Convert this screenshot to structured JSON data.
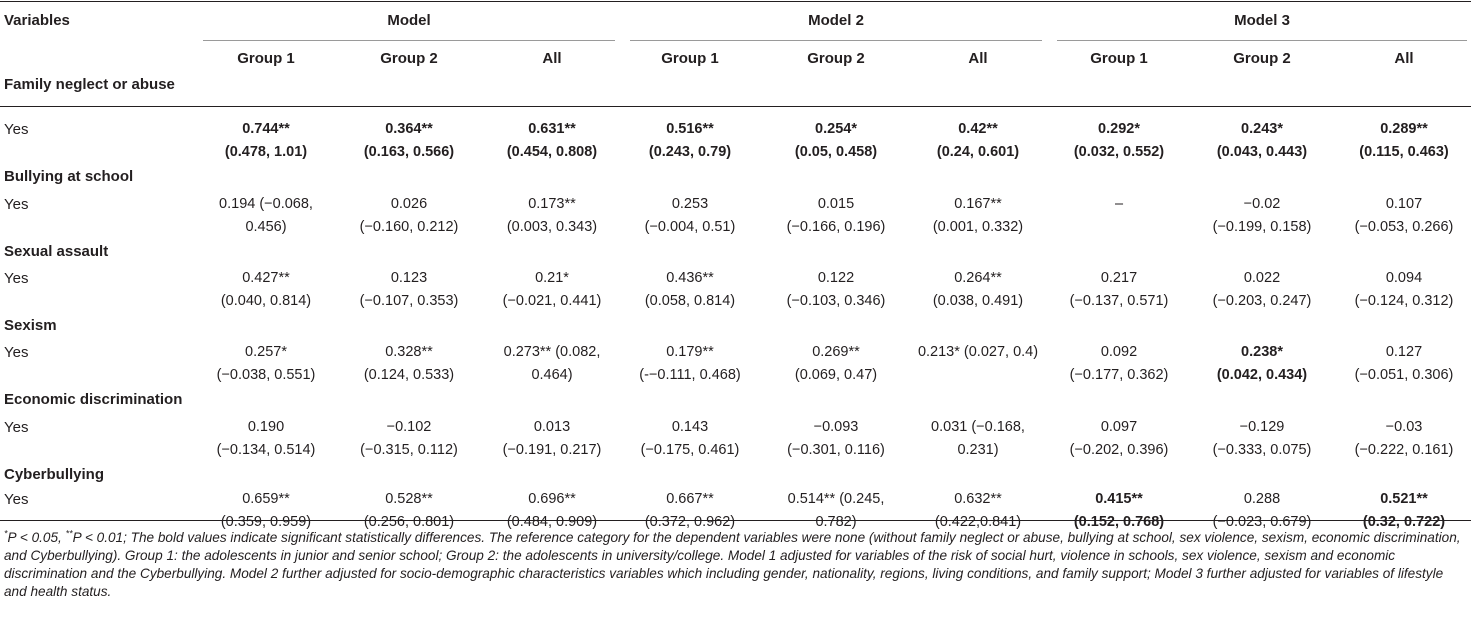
{
  "header": {
    "variables": "Variables",
    "models": [
      "Model",
      "Model 2",
      "Model 3"
    ],
    "groups": [
      "Group 1",
      "Group 2",
      "All",
      "Group 1",
      "Group 2",
      "All",
      "Group 1",
      "Group 2",
      "All"
    ]
  },
  "sections": [
    {
      "title": "Family neglect or abuse",
      "row_label": "Yes",
      "cells": [
        {
          "l1": "0.744**",
          "l2": "(0.478, 1.01)",
          "bold": true
        },
        {
          "l1": "0.364**",
          "l2": "(0.163, 0.566)",
          "bold": true
        },
        {
          "l1": "0.631**",
          "l2": "(0.454, 0.808)",
          "bold": true
        },
        {
          "l1": "0.516**",
          "l2": "(0.243, 0.79)",
          "bold": true
        },
        {
          "l1": "0.254*",
          "l2": "(0.05, 0.458)",
          "bold": true
        },
        {
          "l1": "0.42**",
          "l2": "(0.24, 0.601)",
          "bold": true
        },
        {
          "l1": "0.292*",
          "l2": "(0.032, 0.552)",
          "bold": true
        },
        {
          "l1": "0.243*",
          "l2": "(0.043, 0.443)",
          "bold": true
        },
        {
          "l1": "0.289**",
          "l2": "(0.115, 0.463)",
          "bold": true
        }
      ]
    },
    {
      "title": "Bullying at school",
      "row_label": "Yes",
      "cells": [
        {
          "l1": "0.194 (−0.068,",
          "l2": "0.456)",
          "bold": false
        },
        {
          "l1": "0.026",
          "l2": "(−0.160, 0.212)",
          "bold": false
        },
        {
          "l1": "0.173**",
          "l2": "(0.003, 0.343)",
          "bold": false
        },
        {
          "l1": "0.253",
          "l2": "(−0.004, 0.51)",
          "bold": false
        },
        {
          "l1": "0.015",
          "l2": "(−0.166, 0.196)",
          "bold": false
        },
        {
          "l1": "0.167**",
          "l2": "(0.001, 0.332)",
          "bold": false
        },
        {
          "l1": "–",
          "l2": "",
          "bold": false
        },
        {
          "l1": "−0.02",
          "l2": "(−0.199, 0.158)",
          "bold": false
        },
        {
          "l1": "0.107",
          "l2": "(−0.053, 0.266)",
          "bold": false
        }
      ]
    },
    {
      "title": "Sexual assault",
      "row_label": "Yes",
      "cells": [
        {
          "l1": "0.427**",
          "l2": "(0.040, 0.814)",
          "bold": false
        },
        {
          "l1": "0.123",
          "l2": "(−0.107, 0.353)",
          "bold": false
        },
        {
          "l1": "0.21*",
          "l2": "(−0.021, 0.441)",
          "bold": false
        },
        {
          "l1": "0.436**",
          "l2": "(0.058, 0.814)",
          "bold": false
        },
        {
          "l1": "0.122",
          "l2": "(−0.103, 0.346)",
          "bold": false
        },
        {
          "l1": "0.264**",
          "l2": "(0.038, 0.491)",
          "bold": false
        },
        {
          "l1": "0.217",
          "l2": "(−0.137, 0.571)",
          "bold": false
        },
        {
          "l1": "0.022",
          "l2": "(−0.203, 0.247)",
          "bold": false
        },
        {
          "l1": "0.094",
          "l2": "(−0.124, 0.312)",
          "bold": false
        }
      ]
    },
    {
      "title": "Sexism",
      "row_label": "Yes",
      "cells": [
        {
          "l1": "0.257*",
          "l2": "(−0.038, 0.551)",
          "bold": false
        },
        {
          "l1": "0.328**",
          "l2": "(0.124, 0.533)",
          "bold": false
        },
        {
          "l1": "0.273** (0.082,",
          "l2": "0.464)",
          "bold": false
        },
        {
          "l1": "0.179**",
          "l2": "(-−0.111, 0.468)",
          "bold": false
        },
        {
          "l1": "0.269**",
          "l2": "(0.069, 0.47)",
          "bold": false
        },
        {
          "l1": "0.213* (0.027, 0.4)",
          "l2": "",
          "bold": false
        },
        {
          "l1": "0.092",
          "l2": "(−0.177, 0.362)",
          "bold": false
        },
        {
          "l1": "0.238*",
          "l2": "(0.042, 0.434)",
          "bold": true
        },
        {
          "l1": "0.127",
          "l2": "(−0.051, 0.306)",
          "bold": false
        }
      ]
    },
    {
      "title": "Economic discrimination",
      "row_label": "Yes",
      "cells": [
        {
          "l1": "0.190",
          "l2": "(−0.134, 0.514)",
          "bold": false
        },
        {
          "l1": "−0.102",
          "l2": "(−0.315, 0.112)",
          "bold": false
        },
        {
          "l1": "0.013",
          "l2": "(−0.191, 0.217)",
          "bold": false
        },
        {
          "l1": "0.143",
          "l2": "(−0.175, 0.461)",
          "bold": false
        },
        {
          "l1": "−0.093",
          "l2": "(−0.301, 0.116)",
          "bold": false
        },
        {
          "l1": "0.031 (−0.168,",
          "l2": "0.231)",
          "bold": false
        },
        {
          "l1": "0.097",
          "l2": "(−0.202, 0.396)",
          "bold": false
        },
        {
          "l1": "−0.129",
          "l2": "(−0.333, 0.075)",
          "bold": false
        },
        {
          "l1": "−0.03",
          "l2": "(−0.222, 0.161)",
          "bold": false
        }
      ]
    },
    {
      "title": "Cyberbullying",
      "row_label": "Yes",
      "cells": [
        {
          "l1": "0.659**",
          "l2": "(0.359, 0.959)",
          "bold": false
        },
        {
          "l1": "0.528**",
          "l2": "(0.256, 0.801)",
          "bold": false
        },
        {
          "l1": "0.696**",
          "l2": "(0.484, 0.909)",
          "bold": false
        },
        {
          "l1": "0.667**",
          "l2": "(0.372, 0.962)",
          "bold": false
        },
        {
          "l1": "0.514** (0.245,",
          "l2": "0.782)",
          "bold": false
        },
        {
          "l1": "0.632**",
          "l2": "(0.422,0.841)",
          "bold": false
        },
        {
          "l1": "0.415**",
          "l2": "(0.152, 0.768)",
          "bold": true
        },
        {
          "l1": "0.288",
          "l2": "(−0.023, 0.679)",
          "bold": false
        },
        {
          "l1": "0.521**",
          "l2": "(0.32, 0.722)",
          "bold": true
        }
      ]
    }
  ],
  "footnote": {
    "m1": "*",
    "p1": "P < 0.05, ",
    "m2": "**",
    "p2": "P < 0.01; The bold values indicate significant statistically differences. The reference category for the dependent variables were none (without family neglect or abuse, bullying at school, sex violence, sexism, economic discrimination, and Cyberbullying). Group 1: the adolescents in junior and senior school; Group 2: the adolescents in university/college. Model 1 adjusted for variables of the risk of social hurt, violence in schools, sex violence, sexism and economic discrimination and the Cyberbullying. Model 2 further adjusted for socio-demographic characteristics variables which including gender, nationality, regions, living conditions, and family support; Model 3 further adjusted for variables of lifestyle and health status."
  }
}
